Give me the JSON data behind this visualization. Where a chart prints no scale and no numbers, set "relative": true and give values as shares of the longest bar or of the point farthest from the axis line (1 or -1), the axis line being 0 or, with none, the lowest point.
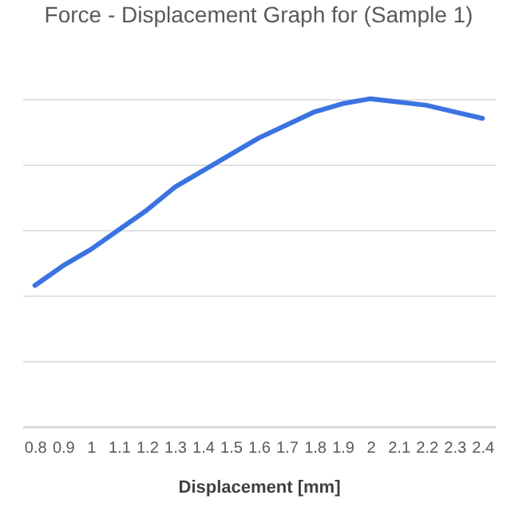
{
  "chart_data": {
    "type": "line",
    "title": "Force - Displacement Graph for (Sample 1)",
    "xlabel": "Displacement [mm]",
    "relative": true,
    "grid": "y",
    "legend": false,
    "categories": [
      "0.8",
      "0.9",
      "1",
      "1.1",
      "1.2",
      "1.3",
      "1.4",
      "1.5",
      "1.6",
      "1.7",
      "1.8",
      "1.9",
      "2",
      "2.1",
      "2.2",
      "2.3",
      "2.4"
    ],
    "series": [
      {
        "color": "#3b73e0",
        "values": [
          0.43,
          0.49,
          0.54,
          0.6,
          0.66,
          0.73,
          0.78,
          0.83,
          0.88,
          0.92,
          0.96,
          0.985,
          1.0,
          0.99,
          0.98,
          0.96,
          0.94
        ]
      }
    ]
  }
}
